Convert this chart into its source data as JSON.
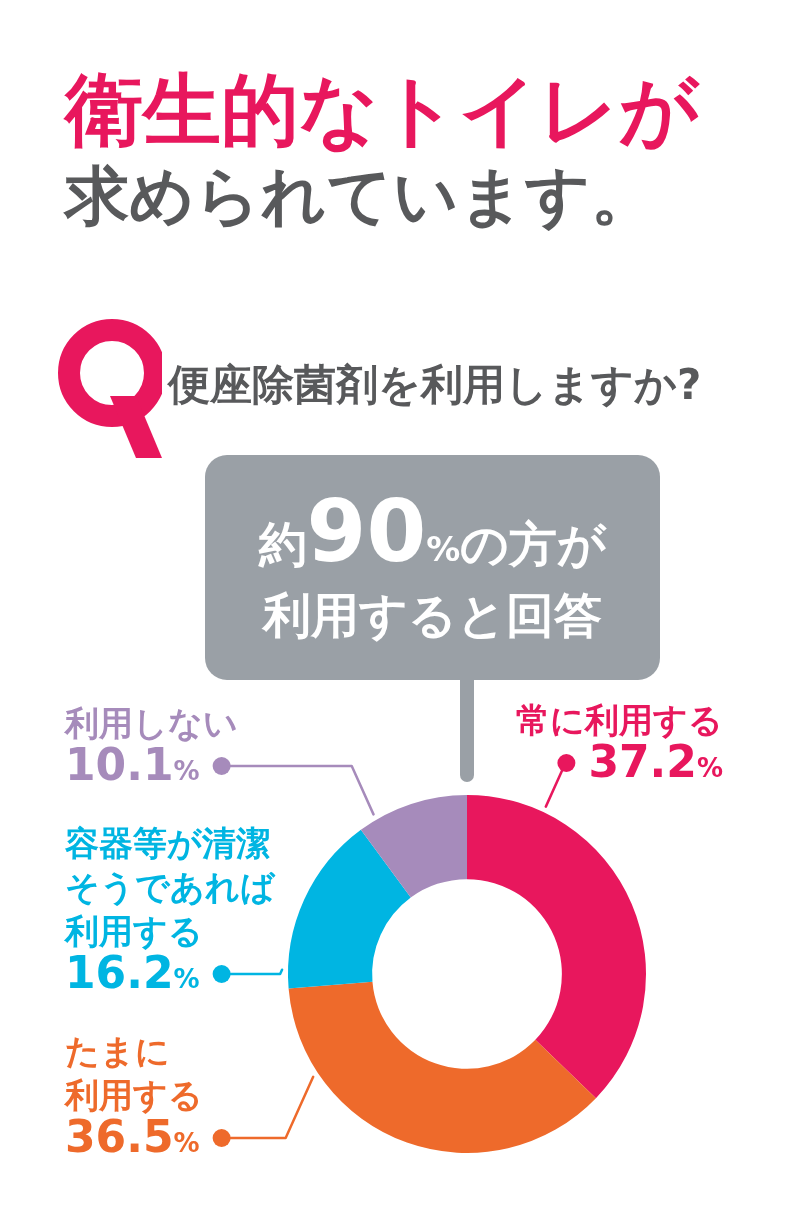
{
  "chart_data": {
    "type": "donut",
    "title": "衛生的なトイレが求められています。",
    "subtitle": "便座除菌剤を利用しますか?",
    "categories": [
      "常に利用する",
      "たまに利用する",
      "容器等が清潔そうであれば利用する",
      "利用しない"
    ],
    "values": [
      37.2,
      36.5,
      16.2,
      10.1
    ],
    "colors": [
      "#e8175d",
      "#ee6a2b",
      "#00b5e2",
      "#a68bbb"
    ],
    "value_labels": [
      "37.2%",
      "36.5%",
      "16.2%",
      "10.1%"
    ],
    "annotations": [
      "約90%の方が利用すると回答"
    ]
  }
}
